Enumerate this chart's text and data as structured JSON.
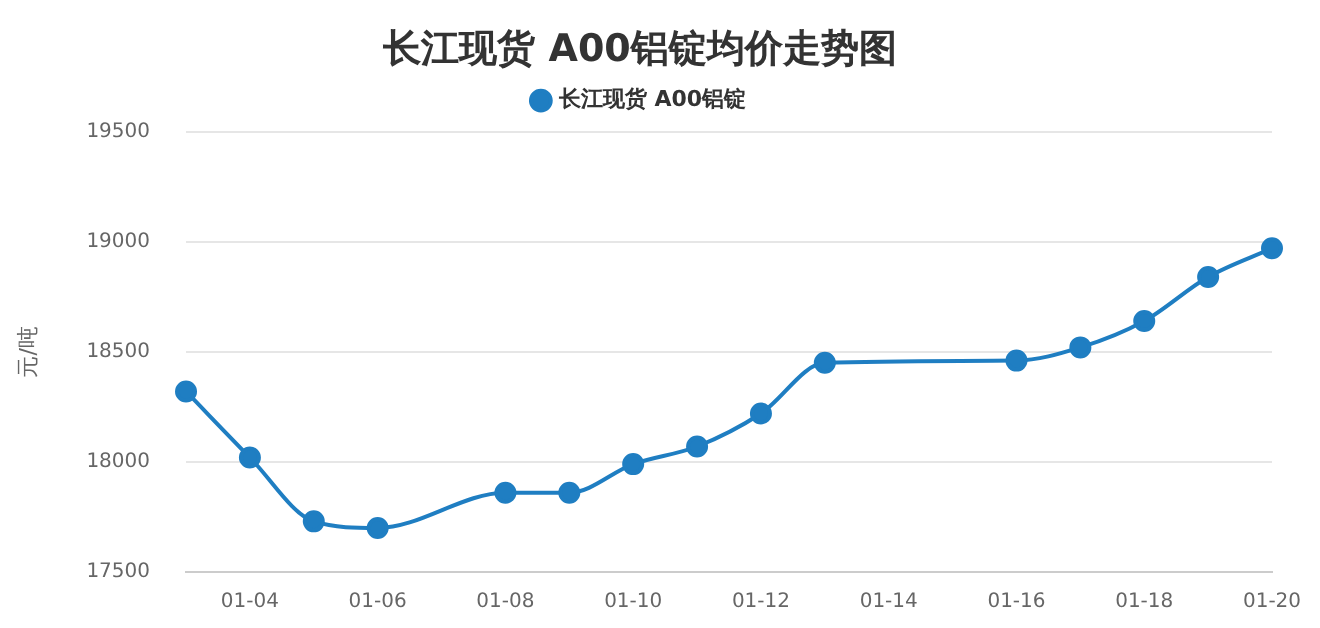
{
  "chart_data": {
    "type": "line",
    "title": "长江现货 A00铝锭均价走势图",
    "ylabel": "元/吨",
    "x": [
      "--01-03",
      "--01-04",
      "--01-05",
      "--01-06",
      "--01-08",
      "--01-09",
      "--01-10",
      "--01-11",
      "--01-12",
      "--01-13",
      "--01-16",
      "--01-17",
      "--01-18",
      "--01-19",
      "--01-20"
    ],
    "series": [
      {
        "name": "长江现货 A00铝锭",
        "color": "#1f7ec2",
        "values": [
          18320,
          18020,
          17730,
          17700,
          17860,
          17860,
          17990,
          18070,
          18220,
          18450,
          18460,
          18520,
          18640,
          18840,
          18970
        ]
      }
    ],
    "xlim": [
      "--01-03",
      "--01-20"
    ],
    "xticks": [
      {
        "value": "--01-04",
        "label": "01-04"
      },
      {
        "value": "--01-06",
        "label": "01-06"
      },
      {
        "value": "--01-08",
        "label": "01-08"
      },
      {
        "value": "--01-10",
        "label": "01-10"
      },
      {
        "value": "--01-12",
        "label": "01-12"
      },
      {
        "value": "--01-14",
        "label": "01-14"
      },
      {
        "value": "--01-16",
        "label": "01-16"
      },
      {
        "value": "--01-18",
        "label": "01-18"
      },
      {
        "value": "--01-20",
        "label": "01-20"
      }
    ],
    "ylim": [
      17500,
      19500
    ],
    "yticks": [
      17500,
      18000,
      18500,
      19000,
      19500
    ],
    "grid": "y",
    "legend": "top",
    "marker": "circle",
    "line_style": "solid"
  }
}
